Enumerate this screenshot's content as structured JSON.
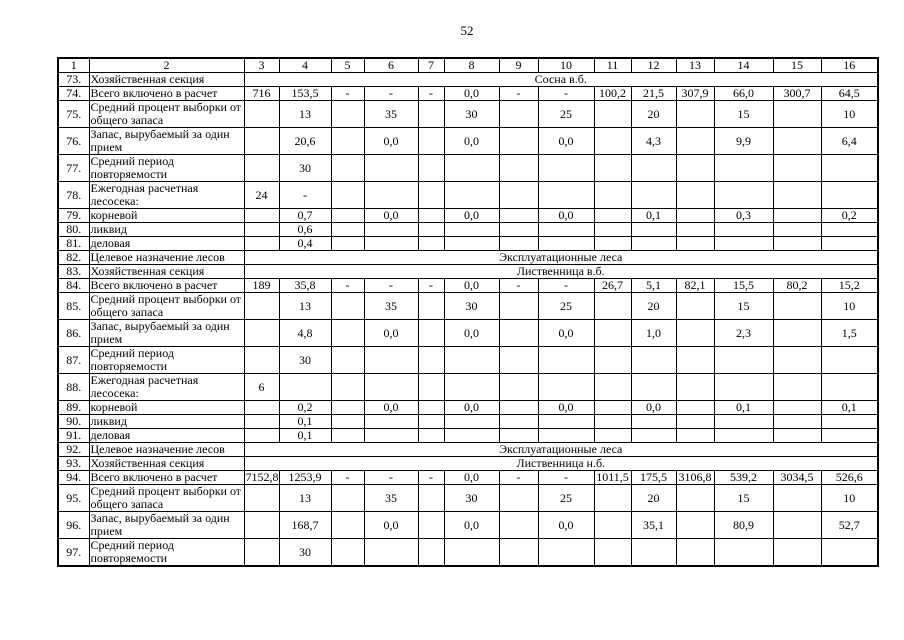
{
  "page": {
    "number": "52"
  },
  "table": {
    "column_headers": [
      "1",
      "2",
      "3",
      "4",
      "5",
      "6",
      "7",
      "8",
      "9",
      "10",
      "11",
      "12",
      "13",
      "14",
      "15",
      "16"
    ],
    "rows": [
      {
        "num": "73.",
        "label": "Хозяйственная секция",
        "span_text": "Сосна в.б."
      },
      {
        "num": "74.",
        "label": "Всего включено в расчет",
        "cells": [
          "716",
          "153,5",
          "-",
          "-",
          "-",
          "0,0",
          "-",
          "-",
          "100,2",
          "21,5",
          "307,9",
          "66,0",
          "300,7",
          "64,5"
        ]
      },
      {
        "num": "75.",
        "label": "Средний процент выборки от общего запаса",
        "cells": [
          "",
          "13",
          "",
          "35",
          "",
          "30",
          "",
          "25",
          "",
          "20",
          "",
          "15",
          "",
          "10"
        ]
      },
      {
        "num": "76.",
        "label": "Запас, вырубаемый за один прием",
        "cells": [
          "",
          "20,6",
          "",
          "0,0",
          "",
          "0,0",
          "",
          "0,0",
          "",
          "4,3",
          "",
          "9,9",
          "",
          "6,4"
        ]
      },
      {
        "num": "77.",
        "label": "Средний период повторяемости",
        "cells": [
          "",
          "30",
          "",
          "",
          "",
          "",
          "",
          "",
          "",
          "",
          "",
          "",
          "",
          ""
        ]
      },
      {
        "num": "78.",
        "label": "Ежегодная расчетная лесосека:",
        "cells": [
          "24",
          "-",
          "",
          "",
          "",
          "",
          "",
          "",
          "",
          "",
          "",
          "",
          "",
          ""
        ]
      },
      {
        "num": "79.",
        "label": "корневой",
        "cells": [
          "",
          "0,7",
          "",
          "0,0",
          "",
          "0,0",
          "",
          "0,0",
          "",
          "0,1",
          "",
          "0,3",
          "",
          "0,2"
        ]
      },
      {
        "num": "80.",
        "label": "ликвид",
        "cells": [
          "",
          "0,6",
          "",
          "",
          "",
          "",
          "",
          "",
          "",
          "",
          "",
          "",
          "",
          ""
        ]
      },
      {
        "num": "81.",
        "label": "деловая",
        "cells": [
          "",
          "0,4",
          "",
          "",
          "",
          "",
          "",
          "",
          "",
          "",
          "",
          "",
          "",
          ""
        ]
      },
      {
        "num": "82.",
        "label": "Целевое назначение лесов",
        "span_text": "Эксплуатационные леса"
      },
      {
        "num": "83.",
        "label": "Хозяйственная секция",
        "span_text": "Лиственница в.б."
      },
      {
        "num": "84.",
        "label": "Всего включено в расчет",
        "cells": [
          "189",
          "35,8",
          "-",
          "-",
          "-",
          "0,0",
          "-",
          "-",
          "26,7",
          "5,1",
          "82,1",
          "15,5",
          "80,2",
          "15,2"
        ]
      },
      {
        "num": "85.",
        "label": "Средний процент выборки от общего запаса",
        "cells": [
          "",
          "13",
          "",
          "35",
          "",
          "30",
          "",
          "25",
          "",
          "20",
          "",
          "15",
          "",
          "10"
        ]
      },
      {
        "num": "86.",
        "label": "Запас, вырубаемый за один прием",
        "cells": [
          "",
          "4,8",
          "",
          "0,0",
          "",
          "0,0",
          "",
          "0,0",
          "",
          "1,0",
          "",
          "2,3",
          "",
          "1,5"
        ]
      },
      {
        "num": "87.",
        "label": "Средний период повторяемости",
        "cells": [
          "",
          "30",
          "",
          "",
          "",
          "",
          "",
          "",
          "",
          "",
          "",
          "",
          "",
          ""
        ]
      },
      {
        "num": "88.",
        "label": "Ежегодная расчетная лесосека:",
        "cells": [
          "6",
          "",
          "",
          "",
          "",
          "",
          "",
          "",
          "",
          "",
          "",
          "",
          "",
          ""
        ]
      },
      {
        "num": "89.",
        "label": "корневой",
        "cells": [
          "",
          "0,2",
          "",
          "0,0",
          "",
          "0,0",
          "",
          "0,0",
          "",
          "0,0",
          "",
          "0,1",
          "",
          "0,1"
        ]
      },
      {
        "num": "90.",
        "label": "ликвид",
        "cells": [
          "",
          "0,1",
          "",
          "",
          "",
          "",
          "",
          "",
          "",
          "",
          "",
          "",
          "",
          ""
        ]
      },
      {
        "num": "91.",
        "label": "деловая",
        "cells": [
          "",
          "0,1",
          "",
          "",
          "",
          "",
          "",
          "",
          "",
          "",
          "",
          "",
          "",
          ""
        ]
      },
      {
        "num": "92.",
        "label": "Целевое назначение лесов",
        "span_text": "Эксплуатационные леса"
      },
      {
        "num": "93.",
        "label": "Хозяйственная секция",
        "span_text": "Лиственница н.б."
      },
      {
        "num": "94.",
        "label": "Всего включено в расчет",
        "cells": [
          "7152,8",
          "1253,9",
          "-",
          "-",
          "-",
          "0,0",
          "-",
          "-",
          "1011,5",
          "175,5",
          "3106,8",
          "539,2",
          "3034,5",
          "526,6"
        ]
      },
      {
        "num": "95.",
        "label": "Средний процент выборки от общего запаса",
        "cells": [
          "",
          "13",
          "",
          "35",
          "",
          "30",
          "",
          "25",
          "",
          "20",
          "",
          "15",
          "",
          "10"
        ]
      },
      {
        "num": "96.",
        "label": "Запас, вырубаемый за один прием",
        "cells": [
          "",
          "168,7",
          "",
          "0,0",
          "",
          "0,0",
          "",
          "0,0",
          "",
          "35,1",
          "",
          "80,9",
          "",
          "52,7"
        ]
      },
      {
        "num": "97.",
        "label": "Средний период повторяемости",
        "cells": [
          "",
          "30",
          "",
          "",
          "",
          "",
          "",
          "",
          "",
          "",
          "",
          "",
          "",
          ""
        ]
      }
    ]
  }
}
